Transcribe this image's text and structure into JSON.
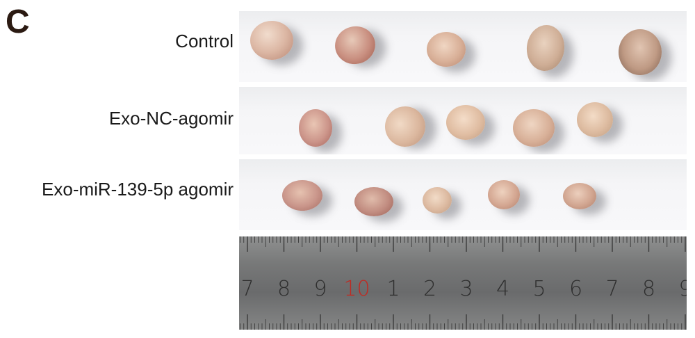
{
  "panel_letter": "C",
  "rows": [
    {
      "label": "Control"
    },
    {
      "label": "Exo-NC-agomir"
    },
    {
      "label": "Exo-miR-139-5p agomir"
    }
  ],
  "ruler": {
    "numbers": [
      "7",
      "8",
      "9",
      "10",
      "1",
      "2",
      "3",
      "4",
      "5",
      "6",
      "7",
      "8",
      "9"
    ],
    "highlight_color": "#c02a22",
    "number_color": "#2e2e2e"
  },
  "colors": {
    "tumor_light": "#ead2c0",
    "tumor_dark": "#a36a57",
    "background": "#f6f6f8"
  }
}
